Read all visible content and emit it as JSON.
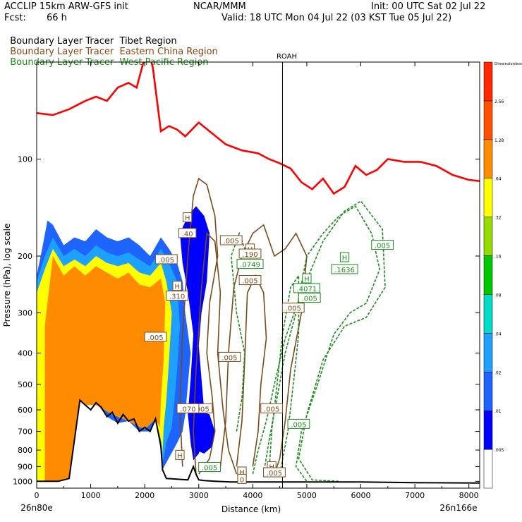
{
  "header": {
    "model": "ACCLIP 15km ARW-GFS init",
    "org": "NCAR/MMM",
    "init": "Init: 00 UTC Sat 02 Jul 22",
    "fcst_label": "Fcst:",
    "fcst_value": "66 h",
    "valid": "Valid: 18 UTC Mon 04 Jul 22 (03 KST Tue 05 Jul 22)"
  },
  "legend": [
    {
      "prefix": "Boundary Layer Tracer",
      "region": "Tibet Region",
      "color": "#000000"
    },
    {
      "prefix": "Boundary Layer Tracer",
      "region": "Eastern China Region",
      "color": "#8B4513"
    },
    {
      "prefix": "Boundary Layer Tracer",
      "region": "West Pacific Region",
      "color": "#1E8A1E"
    }
  ],
  "colors": {
    "tropopause": "#FF0000",
    "terrain": "#000000",
    "china_contour": "#7A4A1A",
    "pacific_contour": "#1E8A1E"
  },
  "chart_data": {
    "type": "heatmap",
    "xlabel": "Distance (km)",
    "ylabel": "Pressure (hPa), log scale",
    "x_ticks": [
      0,
      1000,
      2000,
      3000,
      4000,
      5000,
      6000,
      7000,
      8000
    ],
    "y_ticks": [
      100,
      200,
      300,
      400,
      500,
      600,
      700,
      800,
      900,
      1000
    ],
    "xlim": [
      0,
      8200
    ],
    "ylim": [
      1050,
      50
    ],
    "y_scale": "log",
    "left_end": "26n80e",
    "right_end": "26n166e",
    "station_label": "ROAH",
    "station_x": 4550,
    "colorbar": {
      "title": "Dimensionless",
      "ticks": [
        ".005",
        ".01",
        ".02",
        ".04",
        ".08",
        ".16",
        ".32",
        ".64",
        "1.28",
        "2.56"
      ],
      "colors": [
        "#FFFFFF",
        "#0000FF",
        "#1E64FF",
        "#1EA0FF",
        "#00DCC8",
        "#00C800",
        "#96DC00",
        "#FFFF00",
        "#FF8C00",
        "#FF5000",
        "#FF2800"
      ]
    },
    "tropopause_line": {
      "x": [
        0,
        300,
        600,
        900,
        1100,
        1300,
        1500,
        1700,
        1850,
        1950,
        2050,
        2150,
        2300,
        2450,
        2600,
        2750,
        3000,
        3200,
        3500,
        3800,
        4100,
        4300,
        4500,
        4700,
        4900,
        5100,
        5300,
        5500,
        5700,
        5900,
        6100,
        6300,
        6500,
        6800,
        7100,
        7400,
        7700,
        8000,
        8200
      ],
      "y": [
        72,
        73,
        70,
        66,
        64,
        66,
        60,
        58,
        60,
        52,
        45,
        52,
        82,
        79,
        81,
        85,
        77,
        82,
        90,
        94,
        96,
        100,
        103,
        107,
        118,
        124,
        115,
        128,
        122,
        105,
        112,
        108,
        100,
        102,
        102,
        105,
        112,
        116,
        117
      ]
    },
    "terrain_line": {
      "x": [
        0,
        400,
        600,
        800,
        900,
        1000,
        1100,
        1200,
        1300,
        1400,
        1500,
        1600,
        1700,
        1800,
        1900,
        2000,
        2100,
        2200,
        2300,
        2330,
        2400,
        2600,
        2800,
        2900,
        2950,
        3000,
        3100,
        3300,
        3600,
        4000,
        4500,
        5000,
        6000,
        7000,
        8200
      ],
      "y": [
        1000,
        1000,
        980,
        560,
        580,
        600,
        570,
        590,
        630,
        610,
        660,
        620,
        650,
        640,
        700,
        680,
        700,
        640,
        780,
        920,
        980,
        985,
        990,
        900,
        950,
        990,
        995,
        1000,
        1005,
        1005,
        1005,
        1005,
        1005,
        1010,
        1012
      ]
    },
    "contour_labels": [
      {
        "text": "H",
        "x": 2790,
        "y": 152,
        "color": "brown"
      },
      {
        "text": ".40",
        "x": 2790,
        "y": 170,
        "color": "brown"
      },
      {
        "text": "H",
        "x": 2600,
        "y": 248,
        "color": "brown"
      },
      {
        "text": ".310",
        "x": 2600,
        "y": 266,
        "color": "brown"
      },
      {
        "text": ".005",
        "x": 2200,
        "y": 357,
        "color": "brown"
      },
      {
        "text": ".005",
        "x": 3600,
        "y": 179,
        "color": "brown"
      },
      {
        "text": "H",
        "x": 3950,
        "y": 190,
        "color": "brown"
      },
      {
        "text": ".190",
        "x": 3950,
        "y": 197,
        "color": "brown"
      },
      {
        "text": ".0749",
        "x": 3950,
        "y": 212,
        "color": "green"
      },
      {
        "text": ".005",
        "x": 3950,
        "y": 238,
        "color": "brown"
      },
      {
        "text": ".005",
        "x": 3570,
        "y": 412,
        "color": "brown"
      },
      {
        "text": ".005",
        "x": 3050,
        "y": 595,
        "color": "brown"
      },
      {
        "text": ".070",
        "x": 2800,
        "y": 595,
        "color": "brown"
      },
      {
        "text": ".005",
        "x": 4350,
        "y": 595,
        "color": "brown"
      },
      {
        "text": ".005",
        "x": 4850,
        "y": 665,
        "color": "green"
      },
      {
        "text": ".005",
        "x": 4750,
        "y": 290,
        "color": "brown"
      },
      {
        "text": ".005",
        "x": 5050,
        "y": 270,
        "color": "green"
      },
      {
        "text": "H",
        "x": 5000,
        "y": 235,
        "color": "green"
      },
      {
        "text": ".4071",
        "x": 5000,
        "y": 252,
        "color": "green"
      },
      {
        "text": "H",
        "x": 5700,
        "y": 202,
        "color": "green"
      },
      {
        "text": ".1636",
        "x": 5700,
        "y": 220,
        "color": "green"
      },
      {
        "text": ".005",
        "x": 6400,
        "y": 185,
        "color": "green"
      },
      {
        "text": ".005",
        "x": 3200,
        "y": 905,
        "color": "green"
      },
      {
        "text": ".005",
        "x": 2400,
        "y": 205,
        "color": "brown"
      },
      {
        "text": "H",
        "x": 4350,
        "y": 900,
        "color": "brown"
      },
      {
        "text": ".005",
        "x": 4400,
        "y": 940,
        "color": "brown"
      },
      {
        "text": "H",
        "x": 3800,
        "y": 935,
        "color": "brown"
      },
      {
        "text": "0",
        "x": 3800,
        "y": 985,
        "color": "brown"
      },
      {
        "text": "H",
        "x": 2650,
        "y": 830,
        "color": "brown"
      }
    ]
  }
}
